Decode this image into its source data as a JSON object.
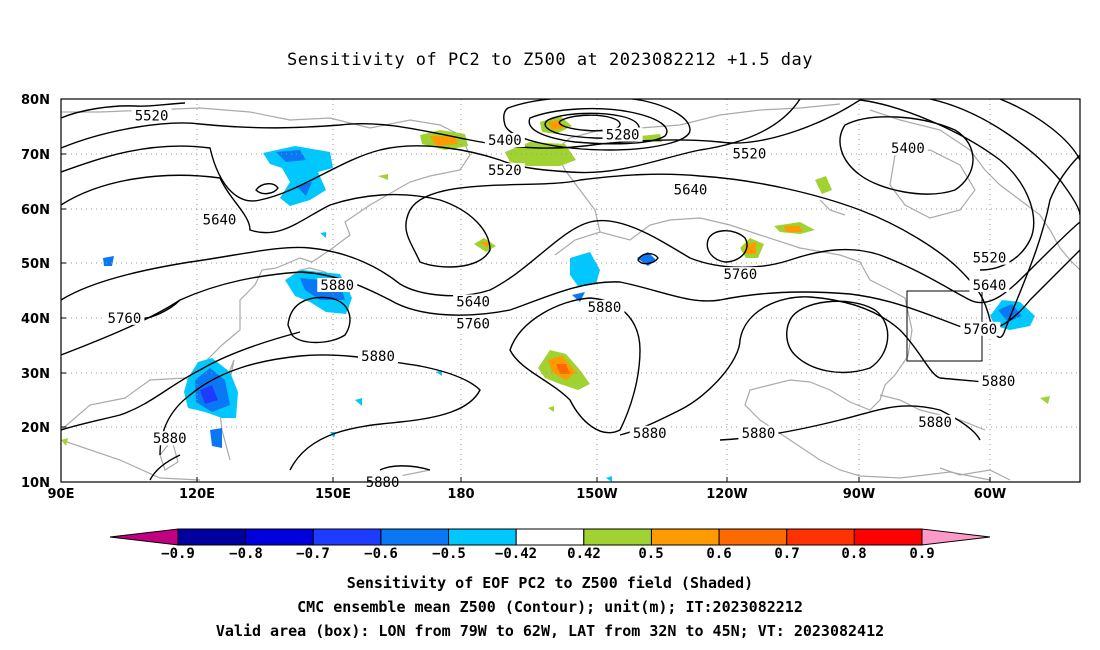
{
  "title": "Sensitivity of PC2 to Z500 at 2023082212 +1.5 day",
  "lat_ticks": [
    "80N",
    "70N",
    "60N",
    "50N",
    "40N",
    "30N",
    "20N",
    "10N"
  ],
  "lon_ticks": [
    "90E",
    "120E",
    "150E",
    "180",
    "150W",
    "120W",
    "90W",
    "60W"
  ],
  "contour_labels": [
    {
      "text": "5520",
      "lon": 110,
      "lat": 77
    },
    {
      "text": "5400",
      "lon": -172,
      "lat": 72.5
    },
    {
      "text": "5280",
      "lon": -146,
      "lat": 73.5
    },
    {
      "text": "5520",
      "lon": -172,
      "lat": 67
    },
    {
      "text": "5520",
      "lon": -118,
      "lat": 70
    },
    {
      "text": "5400",
      "lon": -83,
      "lat": 71
    },
    {
      "text": "5640",
      "lon": -131,
      "lat": 63.5
    },
    {
      "text": "5640",
      "lon": 125,
      "lat": 58
    },
    {
      "text": "5520",
      "lon": -65,
      "lat": 51
    },
    {
      "text": "5640",
      "lon": -65,
      "lat": 46
    },
    {
      "text": "5880",
      "lon": 151,
      "lat": 46
    },
    {
      "text": "5880",
      "lon": -150,
      "lat": 42
    },
    {
      "text": "5640",
      "lon": -179,
      "lat": 43
    },
    {
      "text": "5760",
      "lon": -179,
      "lat": 39
    },
    {
      "text": "5760",
      "lon": -120,
      "lat": 48
    },
    {
      "text": "5760",
      "lon": 104,
      "lat": 40
    },
    {
      "text": "5760",
      "lon": -67,
      "lat": 38
    },
    {
      "text": "5880",
      "lon": 160,
      "lat": 33
    },
    {
      "text": "5880",
      "lon": -63,
      "lat": 28.5
    },
    {
      "text": "5880",
      "lon": -140,
      "lat": 19
    },
    {
      "text": "5880",
      "lon": -116,
      "lat": 19
    },
    {
      "text": "5880",
      "lon": -77,
      "lat": 21
    },
    {
      "text": "5880",
      "lon": 114,
      "lat": 18
    },
    {
      "text": "5880",
      "lon": 161,
      "lat": 10
    }
  ],
  "colorbar": {
    "labels": [
      "−0.9",
      "−0.8",
      "−0.7",
      "−0.6",
      "−0.5",
      "−0.42",
      "0.42",
      "0.5",
      "0.6",
      "0.7",
      "0.8",
      "0.9"
    ],
    "colors": [
      "#0000a0",
      "#0000dc",
      "#1e3cff",
      "#0a78f5",
      "#00c8ff",
      "#ffffff",
      "#a0d232",
      "#ff9a00",
      "#ff6a00",
      "#ff3200",
      "#ff0000"
    ],
    "low_color": "#c00080",
    "high_color": "#ff9ac8"
  },
  "valid_box": {
    "lon_west": -79,
    "lon_east": -62,
    "lat_south": 32,
    "lat_north": 45
  },
  "caption": {
    "line1": "Sensitivity of EOF PC2 to Z500 field (Shaded)",
    "line2": "CMC ensemble mean Z500 (Contour); unit(m); IT:2023082212",
    "line3": "Valid area (box): LON from 79W to 62W, LAT from 32N to 45N; VT: 2023082412"
  }
}
